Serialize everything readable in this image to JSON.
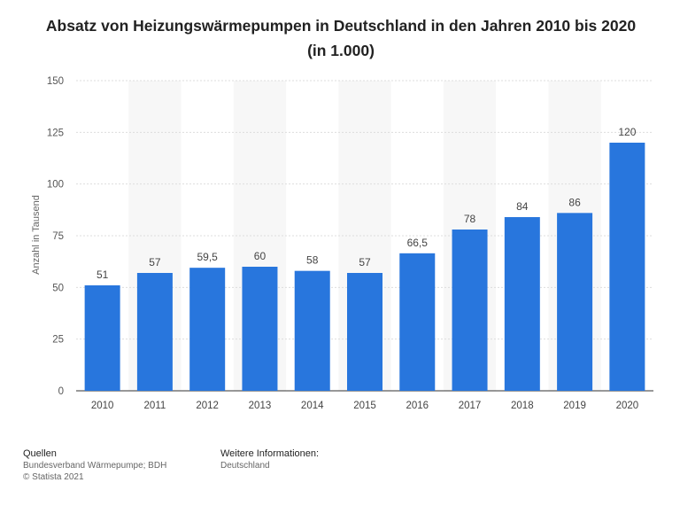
{
  "title": "Absatz von Heizungswärmepumpen in Deutschland in den Jahren 2010 bis 2020 (in 1.000)",
  "chart_data": {
    "type": "bar",
    "categories": [
      "2010",
      "2011",
      "2012",
      "2013",
      "2014",
      "2015",
      "2016",
      "2017",
      "2018",
      "2019",
      "2020"
    ],
    "values": [
      51,
      57,
      59.5,
      60,
      58,
      57,
      66.5,
      78,
      84,
      86,
      120
    ],
    "value_labels": [
      "51",
      "57",
      "59,5",
      "60",
      "58",
      "57",
      "66,5",
      "78",
      "84",
      "86",
      "120"
    ],
    "title": "Absatz von Heizungswärmepumpen in Deutschland in den Jahren 2010 bis 2020 (in 1.000)",
    "xlabel": "",
    "ylabel": "Anzahl in Tausend",
    "ylim": [
      0,
      150
    ],
    "yticks": [
      0,
      25,
      50,
      75,
      100,
      125,
      150
    ],
    "bar_color": "#2876dd",
    "grid": true
  },
  "footer": {
    "sources_label": "Quellen",
    "sources_line1": "Bundesverband Wärmepumpe; BDH",
    "sources_line2": "© Statista 2021",
    "info_label": "Weitere Informationen:",
    "info_text": "Deutschland"
  }
}
